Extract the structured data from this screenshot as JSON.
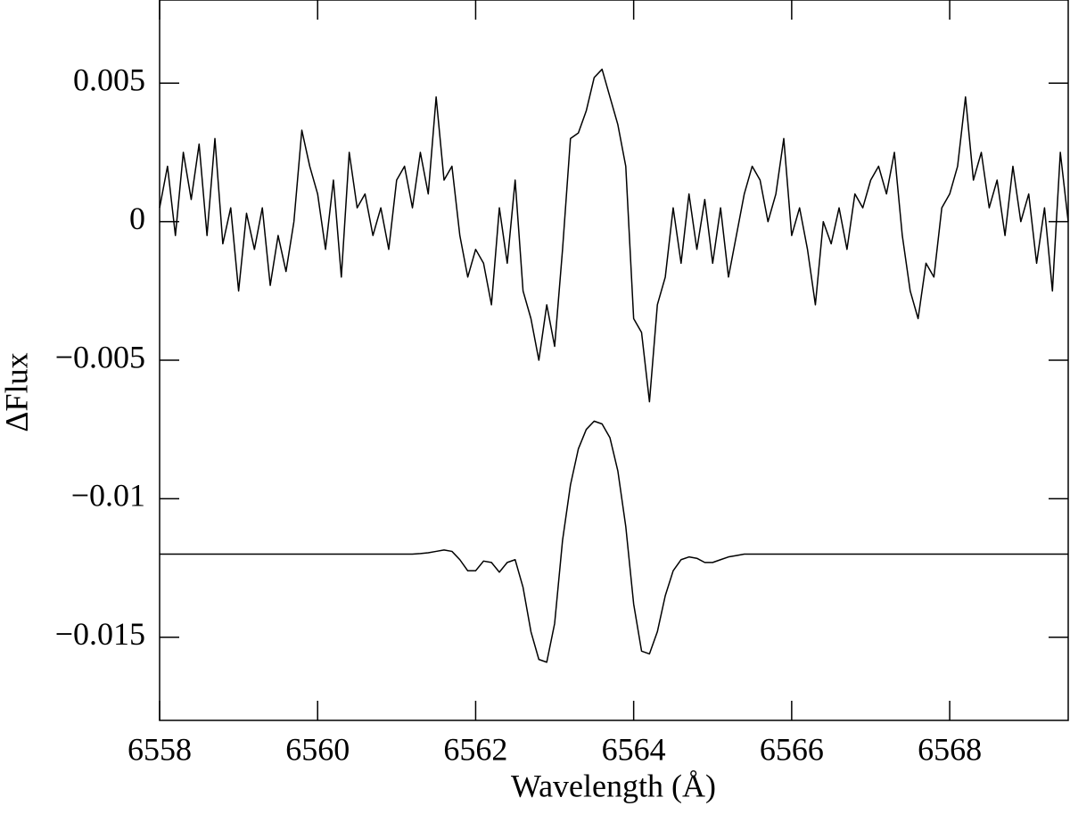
{
  "chart_data": {
    "type": "line",
    "x_label": "Wavelength (Å)",
    "y_label": "ΔFlux",
    "x": [
      6558,
      6558.1,
      6558.2,
      6558.3,
      6558.4,
      6558.5,
      6558.6,
      6558.7,
      6558.8,
      6558.9,
      6559,
      6559.1,
      6559.2,
      6559.3,
      6559.4,
      6559.5,
      6559.6,
      6559.7,
      6559.8,
      6559.9,
      6560,
      6560.1,
      6560.2,
      6560.3,
      6560.4,
      6560.5,
      6560.6,
      6560.7,
      6560.8,
      6560.9,
      6561,
      6561.1,
      6561.2,
      6561.3,
      6561.4,
      6561.5,
      6561.6,
      6561.7,
      6561.8,
      6561.9,
      6562,
      6562.1,
      6562.2,
      6562.3,
      6562.4,
      6562.5,
      6562.6,
      6562.7,
      6562.8,
      6562.9,
      6563,
      6563.1,
      6563.2,
      6563.3,
      6563.4,
      6563.5,
      6563.6,
      6563.7,
      6563.8,
      6563.9,
      6564,
      6564.1,
      6564.2,
      6564.3,
      6564.4,
      6564.5,
      6564.6,
      6564.7,
      6564.8,
      6564.9,
      6565,
      6565.1,
      6565.2,
      6565.3,
      6565.4,
      6565.5,
      6565.6,
      6565.7,
      6565.8,
      6565.9,
      6566,
      6566.1,
      6566.2,
      6566.3,
      6566.4,
      6566.5,
      6566.6,
      6566.7,
      6566.8,
      6566.9,
      6567,
      6567.1,
      6567.2,
      6567.3,
      6567.4,
      6567.5,
      6567.6,
      6567.7,
      6567.8,
      6567.9,
      6568,
      6568.1,
      6568.2,
      6568.3,
      6568.4,
      6568.5,
      6568.6,
      6568.7,
      6568.8,
      6568.9,
      6569,
      6569.1,
      6569.2,
      6569.3,
      6569.4,
      6569.5
    ],
    "series": [
      {
        "color": "#000000",
        "values": [
          0.0005,
          0.002,
          -0.0005,
          0.0025,
          0.0008,
          0.0028,
          -0.0005,
          0.003,
          -0.0008,
          0.0005,
          -0.0025,
          0.0003,
          -0.001,
          0.0005,
          -0.0023,
          -0.0005,
          -0.0018,
          0,
          0.0033,
          0.002,
          0.001,
          -0.001,
          0.0015,
          -0.002,
          0.0025,
          0.0005,
          0.001,
          -0.0005,
          0.0005,
          -0.001,
          0.0015,
          0.002,
          0.0005,
          0.0025,
          0.001,
          0.0045,
          0.0015,
          0.002,
          -0.0005,
          -0.002,
          -0.001,
          -0.0015,
          -0.003,
          0.0005,
          -0.0015,
          0.0015,
          -0.0025,
          -0.0035,
          -0.005,
          -0.003,
          -0.0045,
          -0.001,
          0.003,
          0.0032,
          0.004,
          0.0052,
          0.0055,
          0.0045,
          0.0035,
          0.002,
          -0.0035,
          -0.004,
          -0.0065,
          -0.003,
          -0.002,
          0.0005,
          -0.0015,
          0.001,
          -0.001,
          0.0008,
          -0.0015,
          0.0005,
          -0.002,
          -0.0005,
          0.001,
          0.002,
          0.0015,
          0,
          0.001,
          0.003,
          -0.0005,
          0.0005,
          -0.001,
          -0.003,
          0,
          -0.0008,
          0.0005,
          -0.001,
          0.001,
          0.0005,
          0.0015,
          0.002,
          0.001,
          0.0025,
          -0.0005,
          -0.0025,
          -0.0035,
          -0.0015,
          -0.002,
          0.0005,
          0.001,
          0.002,
          0.0045,
          0.0015,
          0.0025,
          0.0005,
          0.0015,
          -0.0005,
          0.002,
          0,
          0.001,
          -0.0015,
          0.0005,
          -0.0025,
          0.0025,
          0
        ]
      },
      {
        "color": "#000000",
        "values": [
          -0.012,
          -0.012,
          -0.012,
          -0.012,
          -0.012,
          -0.012,
          -0.012,
          -0.012,
          -0.012,
          -0.012,
          -0.012,
          -0.012,
          -0.012,
          -0.012,
          -0.012,
          -0.012,
          -0.012,
          -0.012,
          -0.012,
          -0.012,
          -0.012,
          -0.012,
          -0.012,
          -0.012,
          -0.012,
          -0.012,
          -0.012,
          -0.012,
          -0.012,
          -0.012,
          -0.012,
          -0.012,
          -0.012,
          -0.01198,
          -0.01195,
          -0.0119,
          -0.01185,
          -0.0119,
          -0.0122,
          -0.0126,
          -0.0126,
          -0.01225,
          -0.0123,
          -0.01265,
          -0.0123,
          -0.0122,
          -0.0132,
          -0.0148,
          -0.0158,
          -0.0159,
          -0.0145,
          -0.0115,
          -0.0095,
          -0.0082,
          -0.0075,
          -0.0072,
          -0.0073,
          -0.0078,
          -0.009,
          -0.011,
          -0.0138,
          -0.0155,
          -0.0156,
          -0.0148,
          -0.0135,
          -0.0126,
          -0.0122,
          -0.0121,
          -0.01215,
          -0.0123,
          -0.0123,
          -0.0122,
          -0.0121,
          -0.01205,
          -0.012,
          -0.012,
          -0.012,
          -0.012,
          -0.012,
          -0.012,
          -0.012,
          -0.012,
          -0.012,
          -0.012,
          -0.012,
          -0.012,
          -0.012,
          -0.012,
          -0.012,
          -0.012,
          -0.012,
          -0.012,
          -0.012,
          -0.012,
          -0.012,
          -0.012,
          -0.012,
          -0.012,
          -0.012,
          -0.012,
          -0.012,
          -0.012,
          -0.012,
          -0.012,
          -0.012,
          -0.012,
          -0.012,
          -0.012,
          -0.012,
          -0.012,
          -0.012,
          -0.012,
          -0.012,
          -0.012,
          -0.012,
          -0.012
        ]
      }
    ],
    "xlim": [
      6558,
      6569.5
    ],
    "ylim": [
      -0.018,
      0.008
    ],
    "xticks": [
      6558,
      6560,
      6562,
      6564,
      6566,
      6568
    ],
    "yticks": [
      {
        "value": -0.015,
        "label": "−0.015"
      },
      {
        "value": -0.01,
        "label": "−0.01"
      },
      {
        "value": -0.005,
        "label": "−0.005"
      },
      0,
      0.005
    ]
  }
}
